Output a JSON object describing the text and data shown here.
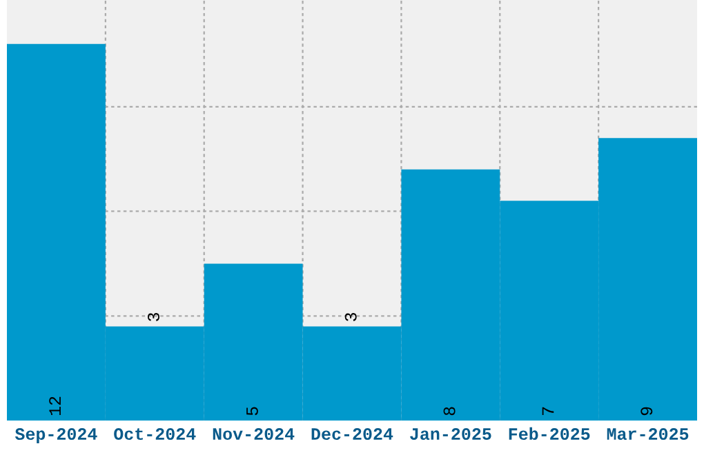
{
  "chart_data": {
    "type": "bar",
    "categories": [
      "Sep-2024",
      "Oct-2024",
      "Nov-2024",
      "Dec-2024",
      "Jan-2025",
      "Feb-2025",
      "Mar-2025"
    ],
    "values": [
      12,
      3,
      5,
      3,
      8,
      7,
      9
    ],
    "color": "#0099cc",
    "ylim": [
      0,
      13.4
    ],
    "yticks": [
      {
        "value": 3.33,
        "label": null
      },
      {
        "value": 6.67,
        "label": null
      },
      {
        "value": 10,
        "label": null
      }
    ],
    "tick_labels": "x",
    "grid": true,
    "data_labels": true
  }
}
